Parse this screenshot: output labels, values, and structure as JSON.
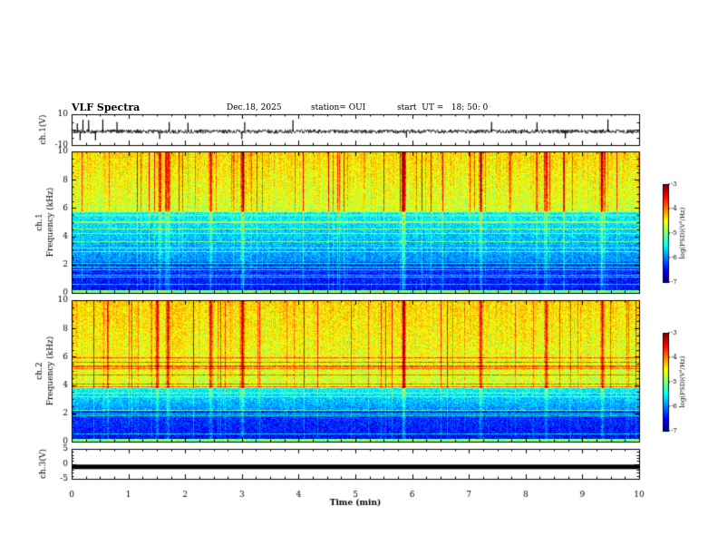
{
  "header": {
    "title": "VLF Spectra",
    "date": "Dec.18, 2025",
    "station": "station= OUI",
    "start": "start  UT =   18: 50: 0"
  },
  "chart_data": {
    "type": "heatmap",
    "title": "VLF Spectra",
    "xlabel": "Time (min)",
    "xlim": [
      0,
      10
    ],
    "xticks": [
      "0",
      "1",
      "2",
      "3",
      "4",
      "5",
      "6",
      "7",
      "8",
      "9",
      "10"
    ],
    "panels": [
      {
        "id": "ch1-waveform",
        "type": "line",
        "ylabel": "ch.1(V)",
        "ylim": [
          -10,
          10
        ],
        "yticks": [
          "10",
          "-10"
        ],
        "baseline": 0,
        "spikes_min": [
          0.1,
          0.15,
          0.2,
          0.3,
          0.42,
          0.55,
          0.8,
          1.55,
          1.72,
          2.05,
          3.0,
          3.05,
          3.9,
          5.9,
          7.4,
          8.2,
          8.7,
          9.45
        ]
      },
      {
        "id": "ch1-spectrogram",
        "type": "heatmap",
        "ylabel": "ch.1 Frequency (kHz)",
        "ylim": [
          0,
          10
        ],
        "yticks": [
          "0",
          "2",
          "4",
          "6",
          "8",
          "10"
        ],
        "colorbar": {
          "label": "log(PSD)(V²/Hz)",
          "range": [
            -7,
            -3
          ],
          "ticks": [
            "-3",
            "-4",
            "-5",
            "-6",
            "-7"
          ]
        },
        "activity_boundary_khz": 5.8,
        "strong_bursts_min": [
          5.85,
          3.0,
          1.7,
          1.55,
          2.45,
          7.2,
          8.35,
          9.35
        ]
      },
      {
        "id": "ch2-spectrogram",
        "type": "heatmap",
        "ylabel": "ch.2 Frequency (kHz)",
        "ylim": [
          0,
          10
        ],
        "yticks": [
          "0",
          "2",
          "4",
          "6",
          "8",
          "10"
        ],
        "colorbar": {
          "label": "log(PSD)(V²/Hz)",
          "range": [
            -7,
            -3
          ],
          "ticks": [
            "-3",
            "-4",
            "-5",
            "-6",
            "-7"
          ]
        },
        "activity_boundary_khz": 3.8,
        "strong_bursts_min": [
          5.85,
          1.5,
          1.7,
          2.45,
          3.0,
          7.2,
          8.35,
          9.35
        ]
      },
      {
        "id": "ch3-waveform",
        "type": "line",
        "ylabel": "ch.3(V)",
        "ylim": [
          -5,
          5
        ],
        "yticks": [
          "5",
          "0",
          "-5"
        ],
        "baseline": -1
      }
    ]
  }
}
